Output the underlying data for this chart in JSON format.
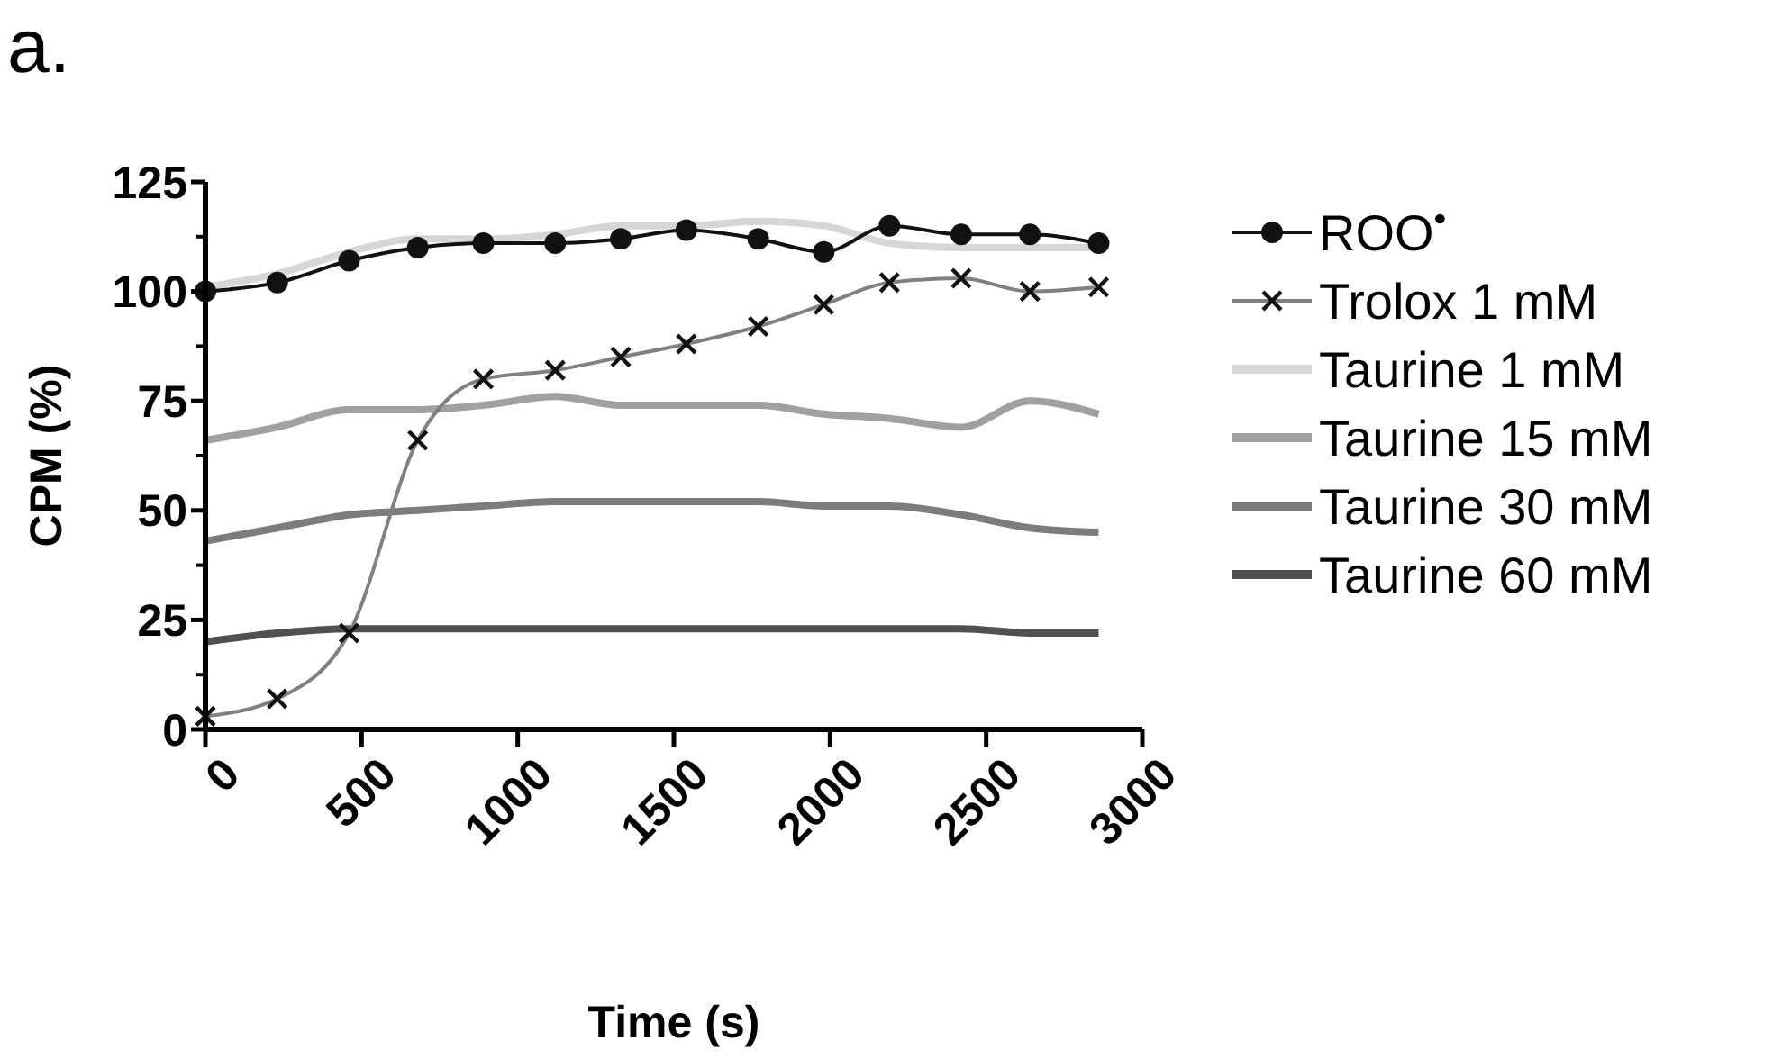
{
  "chart_data": {
    "type": "line",
    "title": "a.",
    "xlabel": "Time (s)",
    "ylabel": "CPM  (%)",
    "x": [
      0,
      230,
      460,
      680,
      890,
      1120,
      1330,
      1540,
      1770,
      1980,
      2190,
      2420,
      2640,
      2860
    ],
    "xlim": [
      0,
      3000
    ],
    "xticks": [
      0,
      500,
      1000,
      1500,
      2000,
      2500,
      3000
    ],
    "ylim": [
      0,
      125
    ],
    "yticks": [
      0,
      25,
      50,
      75,
      100,
      125
    ],
    "legend": "right",
    "grid": false,
    "series": [
      {
        "name": "ROO$^{•}$",
        "color": "#111111",
        "marker": "circle",
        "values": [
          100,
          102,
          107,
          110,
          111,
          111,
          112,
          114,
          112,
          109,
          115,
          113,
          113,
          111
        ]
      },
      {
        "name": "Trolox 1 mM",
        "color": "#808080",
        "marker": "cross",
        "values": [
          3,
          7,
          22,
          66,
          80,
          82,
          85,
          88,
          92,
          97,
          102,
          103,
          100,
          101
        ]
      },
      {
        "name": "Taurine 1 mM",
        "color": "#d6d6d6",
        "marker": "none",
        "values": [
          101,
          104,
          109,
          112,
          112,
          113,
          115,
          115,
          116,
          115,
          111,
          110,
          110,
          110
        ]
      },
      {
        "name": "Taurine 15 mM",
        "color": "#a0a0a0",
        "marker": "none",
        "values": [
          66,
          69,
          73,
          73,
          74,
          76,
          74,
          74,
          74,
          72,
          71,
          69,
          75,
          72
        ]
      },
      {
        "name": "Taurine 30 mM",
        "color": "#7c7c7c",
        "marker": "none",
        "values": [
          43,
          46,
          49,
          50,
          51,
          52,
          52,
          52,
          52,
          51,
          51,
          49,
          46,
          45
        ]
      },
      {
        "name": "Taurine 60 mM",
        "color": "#505050",
        "marker": "none",
        "values": [
          20,
          22,
          23,
          23,
          23,
          23,
          23,
          23,
          23,
          23,
          23,
          23,
          22,
          22
        ]
      }
    ]
  }
}
